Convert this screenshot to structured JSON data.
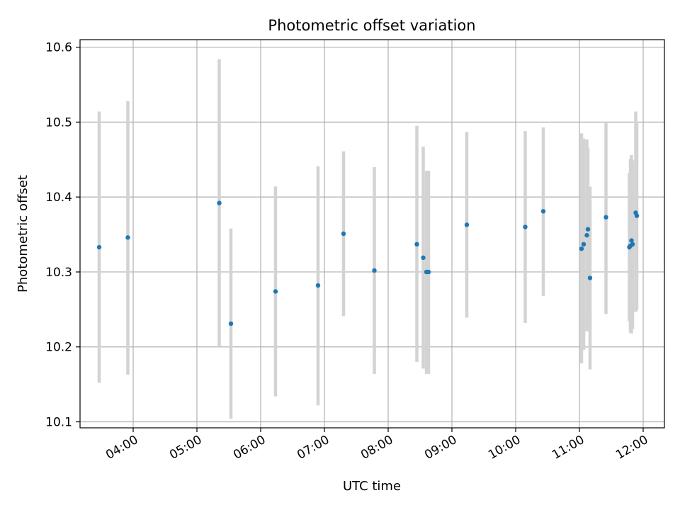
{
  "chart_data": {
    "type": "scatter",
    "title": "Photometric offset variation",
    "xlabel": "UTC time",
    "ylabel": "Photometric offset",
    "x_unit": "hours UTC",
    "xlim": [
      "03:10",
      "12:20"
    ],
    "ylim": [
      10.092,
      10.61
    ],
    "grid": true,
    "xticks": [
      "04:00",
      "05:00",
      "06:00",
      "07:00",
      "08:00",
      "09:00",
      "10:00",
      "11:00",
      "12:00"
    ],
    "yticks": [
      "10.1",
      "10.2",
      "10.3",
      "10.4",
      "10.5",
      "10.6"
    ],
    "marker_color": "#1f77b4",
    "errorbar_color": "#d3d3d3",
    "points": [
      {
        "time": "03:28",
        "y": 10.333,
        "lo": 10.152,
        "hi": 10.514
      },
      {
        "time": "03:55",
        "y": 10.346,
        "lo": 10.163,
        "hi": 10.528
      },
      {
        "time": "05:21",
        "y": 10.392,
        "lo": 10.2,
        "hi": 10.584
      },
      {
        "time": "05:32",
        "y": 10.231,
        "lo": 10.104,
        "hi": 10.358
      },
      {
        "time": "06:14",
        "y": 10.274,
        "lo": 10.134,
        "hi": 10.414
      },
      {
        "time": "06:54",
        "y": 10.282,
        "lo": 10.122,
        "hi": 10.441
      },
      {
        "time": "07:18",
        "y": 10.351,
        "lo": 10.241,
        "hi": 10.461
      },
      {
        "time": "07:47",
        "y": 10.302,
        "lo": 10.164,
        "hi": 10.44
      },
      {
        "time": "08:27",
        "y": 10.337,
        "lo": 10.18,
        "hi": 10.495
      },
      {
        "time": "08:33",
        "y": 10.319,
        "lo": 10.171,
        "hi": 10.467
      },
      {
        "time": "08:36",
        "y": 10.3,
        "lo": 10.164,
        "hi": 10.435
      },
      {
        "time": "08:38",
        "y": 10.3,
        "lo": 10.164,
        "hi": 10.435
      },
      {
        "time": "09:14",
        "y": 10.363,
        "lo": 10.239,
        "hi": 10.487
      },
      {
        "time": "10:09",
        "y": 10.36,
        "lo": 10.232,
        "hi": 10.488
      },
      {
        "time": "10:26",
        "y": 10.381,
        "lo": 10.268,
        "hi": 10.493
      },
      {
        "time": "11:02",
        "y": 10.331,
        "lo": 10.178,
        "hi": 10.485
      },
      {
        "time": "11:04",
        "y": 10.337,
        "lo": 10.196,
        "hi": 10.478
      },
      {
        "time": "11:07",
        "y": 10.349,
        "lo": 10.221,
        "hi": 10.477
      },
      {
        "time": "11:08",
        "y": 10.357,
        "lo": 10.247,
        "hi": 10.466
      },
      {
        "time": "11:10",
        "y": 10.292,
        "lo": 10.17,
        "hi": 10.414
      },
      {
        "time": "11:25",
        "y": 10.373,
        "lo": 10.244,
        "hi": 10.501
      },
      {
        "time": "11:47",
        "y": 10.333,
        "lo": 10.234,
        "hi": 10.432
      },
      {
        "time": "11:48",
        "y": 10.335,
        "lo": 10.219,
        "hi": 10.451
      },
      {
        "time": "11:49",
        "y": 10.342,
        "lo": 10.218,
        "hi": 10.456
      },
      {
        "time": "11:50",
        "y": 10.337,
        "lo": 10.224,
        "hi": 10.449
      },
      {
        "time": "11:53",
        "y": 10.379,
        "lo": 10.247,
        "hi": 10.514
      },
      {
        "time": "11:54",
        "y": 10.375,
        "lo": 10.249,
        "hi": 10.501
      }
    ]
  }
}
